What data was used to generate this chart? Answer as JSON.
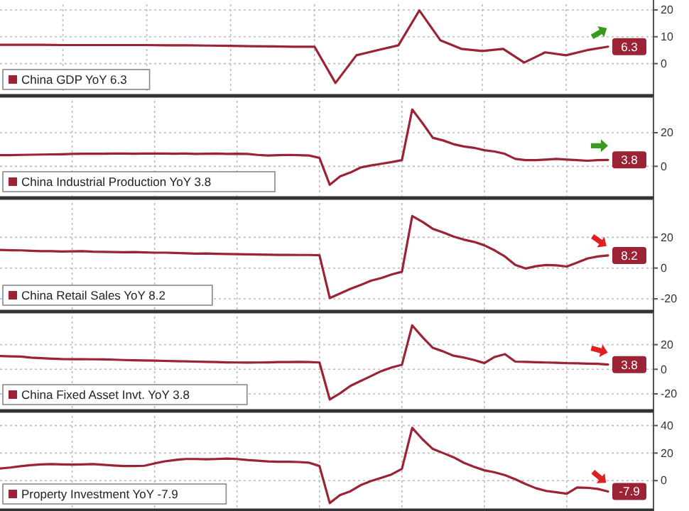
{
  "chart_data": [
    {
      "type": "line",
      "categories": [
        null,
        null,
        null,
        null,
        null,
        null,
        null,
        null,
        null,
        null,
        null,
        null,
        null,
        null,
        null,
        null,
        null,
        null,
        null,
        null,
        null,
        null,
        null,
        null,
        null,
        null,
        null,
        null,
        null,
        null
      ],
      "series": [
        {
          "name": "China GDP YoY 6.3",
          "color": "#9b2335",
          "values": [
            7.0,
            7.0,
            7.0,
            6.9,
            6.9,
            6.9,
            6.9,
            6.9,
            6.8,
            6.8,
            6.7,
            6.6,
            6.5,
            6.4,
            6.3,
            6.3,
            -7.2,
            3.1,
            5.0,
            6.8,
            19.8,
            8.7,
            5.5,
            4.7,
            5.5,
            0.4,
            4.2,
            3.1,
            5.0,
            6.3
          ],
          "value_labels": [
            null,
            null,
            null,
            null,
            null,
            null,
            null,
            null,
            null,
            null,
            null,
            null,
            null,
            null,
            null,
            null,
            null,
            null,
            null,
            null,
            null,
            null,
            null,
            null,
            null,
            null,
            null,
            null,
            null,
            "6.3"
          ]
        }
      ],
      "ylim": [
        -11.2,
        22.1
      ],
      "yticks": [
        0,
        10,
        20
      ],
      "grid": true,
      "legend": "bottom left"
    },
    {
      "type": "line",
      "categories": [
        null,
        null,
        null,
        null,
        null,
        null,
        null,
        null,
        null,
        null,
        null,
        null,
        null,
        null,
        null,
        null,
        null,
        null,
        null,
        null,
        null,
        null,
        null,
        null,
        null,
        null,
        null,
        null,
        null,
        null,
        null,
        null,
        null,
        null,
        null,
        null,
        null,
        null,
        null,
        null,
        null,
        null,
        null,
        null,
        null,
        null,
        null,
        null,
        null,
        null,
        null,
        null,
        null,
        null,
        null,
        null,
        null,
        null,
        null,
        null
      ],
      "series": [
        {
          "name": "China Industrial Production YoY 3.8",
          "color": "#9b2335",
          "values": [
            6.6,
            6.6,
            6.8,
            6.9,
            7.0,
            7.1,
            7.2,
            7.4,
            7.5,
            7.5,
            7.5,
            7.6,
            7.6,
            7.5,
            7.6,
            7.6,
            7.6,
            7.5,
            7.6,
            7.4,
            7.5,
            7.6,
            7.4,
            7.5,
            7.4,
            6.8,
            6.4,
            6.6,
            6.8,
            6.6,
            6.4,
            5.0,
            -11.0,
            -6.0,
            -3.7,
            -0.7,
            0.5,
            1.5,
            2.5,
            3.7,
            33.8,
            25.7,
            17.0,
            15.4,
            13.2,
            11.8,
            11.0,
            9.6,
            8.8,
            7.4,
            4.4,
            3.7,
            3.7,
            4.0,
            4.4,
            4.0,
            3.7,
            3.3,
            3.7,
            3.8
          ],
          "value_labels": [
            null,
            null,
            null,
            null,
            null,
            null,
            null,
            null,
            null,
            null,
            null,
            null,
            null,
            null,
            null,
            null,
            null,
            null,
            null,
            null,
            null,
            null,
            null,
            null,
            null,
            null,
            null,
            null,
            null,
            null,
            null,
            null,
            null,
            null,
            null,
            null,
            null,
            null,
            null,
            null,
            null,
            null,
            null,
            null,
            null,
            null,
            null,
            null,
            null,
            null,
            null,
            null,
            null,
            null,
            null,
            null,
            null,
            null,
            null,
            "3.8"
          ]
        }
      ],
      "ylim": [
        -17.6,
        39
      ],
      "yticks": [
        0,
        20
      ],
      "grid": true,
      "legend": "bottom left"
    },
    {
      "type": "line",
      "categories": [
        null,
        null,
        null,
        null,
        null,
        null,
        null,
        null,
        null,
        null,
        null,
        null,
        null,
        null,
        null,
        null,
        null,
        null,
        null,
        null,
        null,
        null,
        null,
        null,
        null,
        null,
        null,
        null,
        null,
        null,
        null,
        null,
        null,
        null,
        null,
        null,
        null,
        null,
        null,
        null,
        null,
        null,
        null,
        null,
        null,
        null,
        null,
        null,
        null,
        null,
        null,
        null,
        null,
        null,
        null,
        null,
        null,
        null,
        null,
        null
      ],
      "series": [
        {
          "name": "China Retail Sales YoY 8.2",
          "color": "#9b2335",
          "values": [
            11.8,
            11.6,
            11.5,
            11.2,
            11.0,
            11.0,
            10.8,
            10.9,
            11.0,
            10.6,
            10.5,
            10.4,
            10.3,
            10.4,
            10.2,
            10.0,
            10.0,
            9.8,
            9.6,
            9.4,
            9.5,
            9.3,
            9.1,
            9.0,
            8.9,
            8.8,
            8.7,
            8.6,
            8.6,
            8.5,
            8.5,
            8.3,
            -19.5,
            -16.5,
            -13.5,
            -11.0,
            -8.2,
            -6.5,
            -4.2,
            -2.4,
            33.8,
            30.0,
            25.5,
            23.2,
            20.5,
            18.5,
            17.0,
            14.8,
            11.5,
            7.5,
            2.0,
            -0.3,
            1.2,
            2.0,
            1.8,
            1.0,
            3.5,
            6.2,
            7.5,
            8.2
          ],
          "value_labels": [
            null,
            null,
            null,
            null,
            null,
            null,
            null,
            null,
            null,
            null,
            null,
            null,
            null,
            null,
            null,
            null,
            null,
            null,
            null,
            null,
            null,
            null,
            null,
            null,
            null,
            null,
            null,
            null,
            null,
            null,
            null,
            null,
            null,
            null,
            null,
            null,
            null,
            null,
            null,
            null,
            null,
            null,
            null,
            null,
            null,
            null,
            null,
            null,
            null,
            null,
            null,
            null,
            null,
            null,
            null,
            null,
            null,
            null,
            null,
            "8.2"
          ]
        }
      ],
      "ylim": [
        -26.9,
        42.3
      ],
      "yticks": [
        -20,
        0,
        20
      ],
      "grid": true,
      "legend": "bottom left"
    },
    {
      "type": "line",
      "categories": [
        null,
        null,
        null,
        null,
        null,
        null,
        null,
        null,
        null,
        null,
        null,
        null,
        null,
        null,
        null,
        null,
        null,
        null,
        null,
        null,
        null,
        null,
        null,
        null,
        null,
        null,
        null,
        null,
        null,
        null,
        null,
        null,
        null,
        null,
        null,
        null,
        null,
        null,
        null,
        null,
        null,
        null,
        null,
        null,
        null,
        null,
        null,
        null,
        null,
        null,
        null,
        null,
        null,
        null,
        null,
        null,
        null,
        null,
        null,
        null
      ],
      "series": [
        {
          "name": "China Fixed Asset Invt. YoY 3.8",
          "color": "#9b2335",
          "values": [
            10.7,
            10.5,
            10.3,
            9.5,
            9.0,
            8.6,
            8.3,
            8.2,
            8.2,
            8.1,
            8.0,
            7.8,
            7.5,
            7.3,
            7.2,
            7.0,
            6.8,
            6.6,
            6.4,
            6.2,
            6.0,
            5.8,
            5.6,
            5.5,
            5.4,
            5.5,
            5.6,
            5.8,
            5.9,
            6.0,
            5.9,
            5.5,
            -24.6,
            -19.5,
            -13.5,
            -9.5,
            -5.5,
            -1.5,
            1.5,
            3.6,
            35.6,
            26.0,
            17.4,
            14.5,
            11.0,
            9.5,
            7.5,
            5.0,
            10.0,
            12.3,
            6.2,
            6.0,
            5.7,
            5.5,
            5.3,
            5.0,
            4.9,
            4.6,
            4.4,
            3.8
          ],
          "value_labels": [
            null,
            null,
            null,
            null,
            null,
            null,
            null,
            null,
            null,
            null,
            null,
            null,
            null,
            null,
            null,
            null,
            null,
            null,
            null,
            null,
            null,
            null,
            null,
            null,
            null,
            null,
            null,
            null,
            null,
            null,
            null,
            null,
            null,
            null,
            null,
            null,
            null,
            null,
            null,
            null,
            null,
            null,
            null,
            null,
            null,
            null,
            null,
            null,
            null,
            null,
            null,
            null,
            null,
            null,
            null,
            null,
            null,
            null,
            null,
            "3.8"
          ]
        }
      ],
      "ylim": [
        -32.1,
        42.8
      ],
      "yticks": [
        -20,
        0,
        20
      ],
      "grid": true,
      "legend": "bottom left"
    },
    {
      "type": "line",
      "categories": [
        null,
        null,
        null,
        null,
        null,
        null,
        null,
        null,
        null,
        null,
        null,
        null,
        null,
        null,
        null,
        null,
        null,
        null,
        null,
        null,
        null,
        null,
        null,
        null,
        null,
        null,
        null,
        null,
        null,
        null,
        null,
        null,
        null,
        null,
        null,
        null,
        null,
        null,
        null,
        null,
        null,
        null,
        null,
        null,
        null,
        null,
        null,
        null,
        null,
        null,
        null,
        null,
        null,
        null,
        null,
        null,
        null,
        null,
        null,
        null
      ],
      "series": [
        {
          "name": "Property Investment YoY -7.9",
          "color": "#9b2335",
          "values": [
            8.8,
            9.5,
            10.5,
            11.2,
            11.8,
            12.0,
            11.8,
            11.6,
            11.8,
            12.0,
            11.5,
            11.0,
            10.6,
            10.6,
            10.8,
            12.5,
            14.0,
            15.0,
            15.7,
            15.7,
            15.5,
            15.7,
            16.0,
            15.7,
            15.0,
            14.5,
            14.0,
            13.7,
            13.7,
            13.5,
            13.0,
            10.6,
            -16.3,
            -10.5,
            -7.7,
            -3.3,
            -0.3,
            2.0,
            4.5,
            8.5,
            38.3,
            30.0,
            23.0,
            20.0,
            17.0,
            13.0,
            10.0,
            7.5,
            6.0,
            4.0,
            1.0,
            -2.5,
            -5.5,
            -7.5,
            -8.5,
            -9.5,
            -5.0,
            -5.2,
            -6.0,
            -7.9
          ],
          "value_labels": [
            null,
            null,
            null,
            null,
            null,
            null,
            null,
            null,
            null,
            null,
            null,
            null,
            null,
            null,
            null,
            null,
            null,
            null,
            null,
            null,
            null,
            null,
            null,
            null,
            null,
            null,
            null,
            null,
            null,
            null,
            null,
            null,
            null,
            null,
            null,
            null,
            null,
            null,
            null,
            null,
            null,
            null,
            null,
            null,
            null,
            null,
            null,
            null,
            null,
            null,
            null,
            null,
            null,
            null,
            null,
            null,
            null,
            null,
            null,
            "-7.9"
          ]
        }
      ],
      "ylim": [
        -20,
        47
      ],
      "yticks": [
        0,
        20,
        40
      ],
      "grid": true,
      "legend": "bottom left"
    }
  ]
}
